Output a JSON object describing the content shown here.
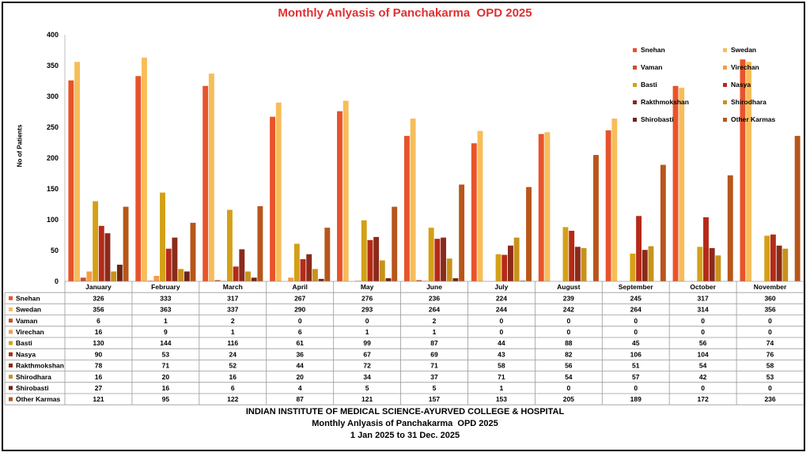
{
  "chart_data": {
    "type": "bar",
    "title": "Monthly Anlyasis of Panchakarma  OPD 2025",
    "xlabel": "",
    "ylabel": "No of Patients",
    "ylim": [
      0,
      400
    ],
    "yticks": [
      0,
      50,
      100,
      150,
      200,
      250,
      300,
      350,
      400
    ],
    "legend_position": "top-right",
    "categories": [
      "January",
      "February",
      "March",
      "April",
      "May",
      "June",
      "July",
      "August",
      "September",
      "October",
      "November"
    ],
    "series": [
      {
        "name": "Snehan",
        "color": "#e8532b",
        "values": [
          326,
          333,
          317,
          267,
          276,
          236,
          224,
          239,
          245,
          317,
          360
        ]
      },
      {
        "name": "Swedan",
        "color": "#f7bd5a",
        "values": [
          356,
          363,
          337,
          290,
          293,
          264,
          244,
          242,
          264,
          314,
          356
        ]
      },
      {
        "name": "Vaman",
        "color": "#c4522e",
        "values": [
          6,
          1,
          2,
          0,
          0,
          2,
          0,
          0,
          0,
          0,
          0
        ]
      },
      {
        "name": "Virechan",
        "color": "#f49b4a",
        "values": [
          16,
          9,
          1,
          6,
          1,
          1,
          0,
          0,
          0,
          0,
          0
        ]
      },
      {
        "name": "Basti",
        "color": "#d4a017",
        "values": [
          130,
          144,
          116,
          61,
          99,
          87,
          44,
          88,
          45,
          56,
          74
        ]
      },
      {
        "name": "Nasya",
        "color": "#b52a18",
        "values": [
          90,
          53,
          24,
          36,
          67,
          69,
          43,
          82,
          106,
          104,
          76
        ]
      },
      {
        "name": "Rakthmokshan",
        "color": "#8b2a1a",
        "values": [
          78,
          71,
          52,
          44,
          72,
          71,
          58,
          56,
          51,
          54,
          58
        ]
      },
      {
        "name": "Shirodhara",
        "color": "#c8921c",
        "values": [
          16,
          20,
          16,
          20,
          34,
          37,
          71,
          54,
          57,
          42,
          53
        ]
      },
      {
        "name": "Shirobasti",
        "color": "#6e2312",
        "values": [
          27,
          16,
          6,
          4,
          5,
          5,
          1,
          0,
          0,
          0,
          0
        ]
      },
      {
        "name": "Other Karmas",
        "color": "#b8561a",
        "values": [
          121,
          95,
          122,
          87,
          121,
          157,
          153,
          205,
          189,
          172,
          236
        ]
      }
    ]
  },
  "footer": {
    "line1": "INDIAN INSTITUTE OF MEDICAL SCIENCE-AYURVED COLLEGE & HOSPITAL",
    "line2": "Monthly Anlyasis of Panchakarma  OPD 2025",
    "line3": "1 Jan 2025 to 31 Dec. 2025"
  }
}
